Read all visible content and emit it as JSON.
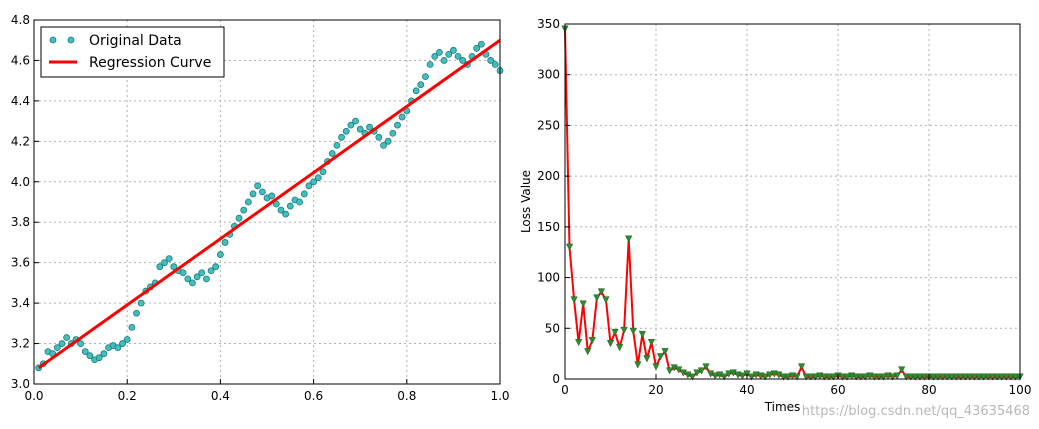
{
  "watermark": "https://blog.csdn.net/qq_43635468",
  "colors": {
    "scatter_fill": "#44bdbd",
    "scatter_edge": "#1a7e7e",
    "regression": "#ff0000",
    "loss_line": "#ff0000",
    "loss_marker": "#2e8b2e",
    "grid": "#b0b0b0"
  },
  "chart_data": [
    {
      "type": "scatter",
      "title": "",
      "xlabel": "",
      "ylabel": "",
      "xlim": [
        0,
        1.0
      ],
      "ylim": [
        3.0,
        4.8
      ],
      "xticks": [
        "0.0",
        "0.2",
        "0.4",
        "0.6",
        "0.8",
        "1.0"
      ],
      "yticks": [
        "3.0",
        "3.2",
        "3.4",
        "3.6",
        "3.8",
        "4.0",
        "4.2",
        "4.4",
        "4.6",
        "4.8"
      ],
      "grid": true,
      "legend_position": "top-left",
      "legend": [
        "Original Data",
        "Regression Curve"
      ],
      "series": [
        {
          "name": "Original Data",
          "type": "scatter",
          "x": [
            0.01,
            0.02,
            0.03,
            0.04,
            0.05,
            0.06,
            0.07,
            0.08,
            0.09,
            0.1,
            0.11,
            0.12,
            0.13,
            0.14,
            0.15,
            0.16,
            0.17,
            0.18,
            0.19,
            0.2,
            0.21,
            0.22,
            0.23,
            0.24,
            0.25,
            0.26,
            0.27,
            0.28,
            0.29,
            0.3,
            0.31,
            0.32,
            0.33,
            0.34,
            0.35,
            0.36,
            0.37,
            0.38,
            0.39,
            0.4,
            0.41,
            0.42,
            0.43,
            0.44,
            0.45,
            0.46,
            0.47,
            0.48,
            0.49,
            0.5,
            0.51,
            0.52,
            0.53,
            0.54,
            0.55,
            0.56,
            0.57,
            0.58,
            0.59,
            0.6,
            0.61,
            0.62,
            0.63,
            0.64,
            0.65,
            0.66,
            0.67,
            0.68,
            0.69,
            0.7,
            0.71,
            0.72,
            0.73,
            0.74,
            0.75,
            0.76,
            0.77,
            0.78,
            0.79,
            0.8,
            0.81,
            0.82,
            0.83,
            0.84,
            0.85,
            0.86,
            0.87,
            0.88,
            0.89,
            0.9,
            0.91,
            0.92,
            0.93,
            0.94,
            0.95,
            0.96,
            0.97,
            0.98,
            0.99,
            1.0
          ],
          "y": [
            3.08,
            3.1,
            3.16,
            3.15,
            3.18,
            3.2,
            3.23,
            3.2,
            3.22,
            3.2,
            3.16,
            3.14,
            3.12,
            3.13,
            3.15,
            3.18,
            3.19,
            3.18,
            3.2,
            3.22,
            3.28,
            3.35,
            3.4,
            3.46,
            3.48,
            3.5,
            3.58,
            3.6,
            3.62,
            3.58,
            3.56,
            3.55,
            3.52,
            3.5,
            3.53,
            3.55,
            3.52,
            3.56,
            3.58,
            3.64,
            3.7,
            3.74,
            3.78,
            3.82,
            3.86,
            3.9,
            3.94,
            3.98,
            3.95,
            3.92,
            3.93,
            3.89,
            3.86,
            3.84,
            3.88,
            3.91,
            3.9,
            3.94,
            3.98,
            4.0,
            4.02,
            4.05,
            4.1,
            4.14,
            4.18,
            4.22,
            4.25,
            4.28,
            4.3,
            4.26,
            4.24,
            4.27,
            4.25,
            4.22,
            4.18,
            4.2,
            4.24,
            4.28,
            4.32,
            4.35,
            4.4,
            4.45,
            4.48,
            4.52,
            4.58,
            4.62,
            4.64,
            4.6,
            4.63,
            4.65,
            4.62,
            4.6,
            4.58,
            4.62,
            4.66,
            4.68,
            4.63,
            4.6,
            4.58,
            4.55
          ]
        },
        {
          "name": "Regression Curve",
          "type": "line",
          "x": [
            0.01,
            1.0
          ],
          "y": [
            3.08,
            4.7
          ]
        }
      ]
    },
    {
      "type": "line",
      "title": "",
      "xlabel": "Times",
      "ylabel": "Loss Value",
      "xlim": [
        0,
        100
      ],
      "ylim": [
        0,
        350
      ],
      "xticks": [
        "0",
        "20",
        "40",
        "60",
        "80",
        "100"
      ],
      "yticks": [
        "0",
        "50",
        "100",
        "150",
        "200",
        "250",
        "300",
        "350"
      ],
      "grid": true,
      "series": [
        {
          "marker": "triangle-down",
          "x": [
            0,
            1,
            2,
            3,
            4,
            5,
            6,
            7,
            8,
            9,
            10,
            11,
            12,
            13,
            14,
            15,
            16,
            17,
            18,
            19,
            20,
            21,
            22,
            23,
            24,
            25,
            26,
            27,
            28,
            29,
            30,
            31,
            32,
            33,
            34,
            35,
            36,
            37,
            38,
            39,
            40,
            41,
            42,
            43,
            44,
            45,
            46,
            47,
            48,
            49,
            50,
            51,
            52,
            53,
            54,
            55,
            56,
            57,
            58,
            59,
            60,
            61,
            62,
            63,
            64,
            65,
            66,
            67,
            68,
            69,
            70,
            71,
            72,
            73,
            74,
            75,
            76,
            77,
            78,
            79,
            80,
            81,
            82,
            83,
            84,
            85,
            86,
            87,
            88,
            89,
            90,
            91,
            92,
            93,
            94,
            95,
            96,
            97,
            98,
            99,
            100
          ],
          "y": [
            345,
            130,
            78,
            36,
            74,
            27,
            38,
            80,
            86,
            78,
            35,
            46,
            31,
            48,
            138,
            47,
            14,
            44,
            20,
            36,
            12,
            22,
            27,
            8,
            11,
            9,
            6,
            4,
            2,
            6,
            8,
            12,
            5,
            3,
            4,
            2,
            5,
            6,
            4,
            3,
            5,
            2,
            4,
            3,
            2,
            4,
            5,
            4,
            2,
            2,
            3,
            2,
            12,
            2,
            2,
            2,
            3,
            2,
            2,
            2,
            3,
            2,
            2,
            3,
            2,
            2,
            2,
            3,
            2,
            2,
            2,
            3,
            2,
            3,
            9,
            2,
            2,
            2,
            2,
            2,
            2,
            2,
            2,
            2,
            2,
            2,
            2,
            2,
            2,
            2,
            2,
            2,
            2,
            2,
            2,
            2,
            2,
            2,
            2,
            2,
            2
          ]
        }
      ]
    }
  ]
}
